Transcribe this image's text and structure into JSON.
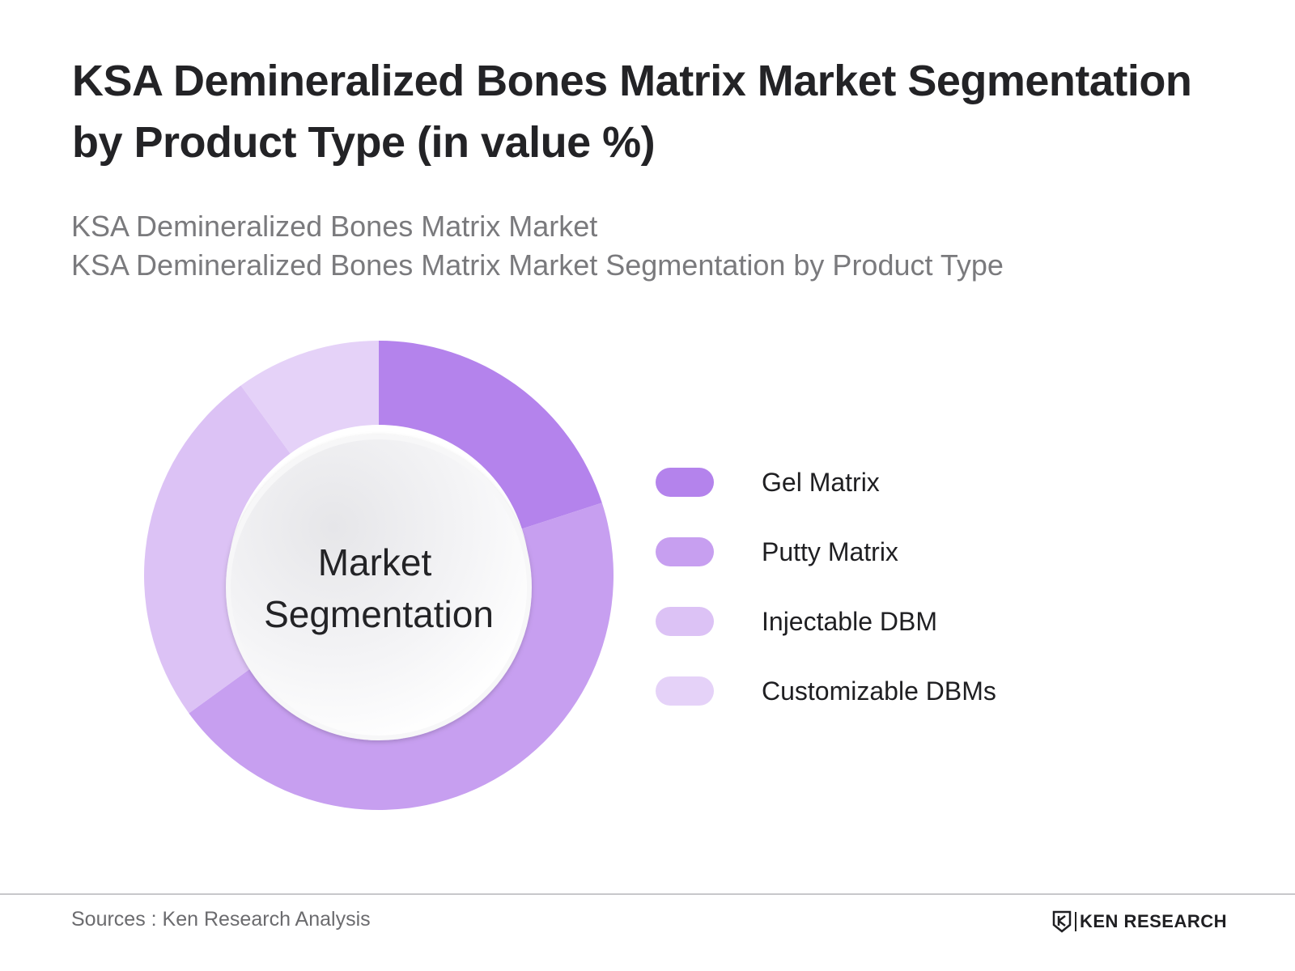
{
  "header": {
    "title": "KSA Demineralized Bones Matrix Market Segmentation by Product Type (in value %)",
    "subtitle_line1": "KSA Demineralized Bones Matrix Market",
    "subtitle_line2": "KSA Demineralized Bones Matrix Market Segmentation by Product Type"
  },
  "chart_data": {
    "type": "pie",
    "style": "donut",
    "center_label_line1": "Market",
    "center_label_line2": "Segmentation",
    "categories": [
      "Gel Matrix",
      "Putty Matrix",
      "Injectable DBM",
      "Customizable DBMs"
    ],
    "values": [
      20,
      45,
      25,
      10
    ],
    "colors": [
      "#b483ec",
      "#c79ff0",
      "#dcc2f5",
      "#e5d2f8"
    ],
    "legend_position": "right",
    "start_angle": "12 o'clock, clockwise"
  },
  "footer": {
    "source": "Sources : Ken Research Analysis",
    "brand": "KEN RESEARCH"
  }
}
